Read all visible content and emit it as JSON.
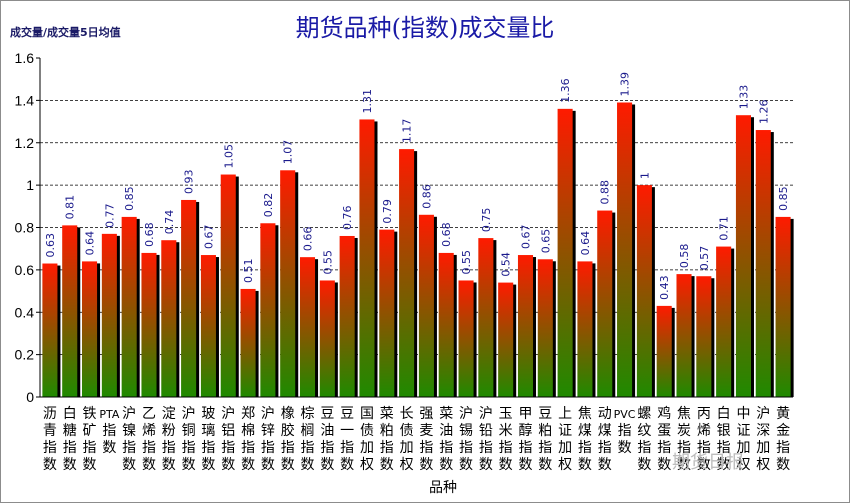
{
  "chart_data": {
    "type": "bar",
    "title": "期货品种(指数)成交量比",
    "ylabel": "成交量/成交量5日均值",
    "xlabel": "品种",
    "ylim": [
      0,
      1.6
    ],
    "yticks": [
      "0",
      "0.2",
      "0.4",
      "0.6",
      "0.8",
      "1",
      "1.2",
      "1.4",
      "1.6"
    ],
    "grid": true,
    "categories": [
      "沥青指数",
      "白糖指数",
      "铁矿指数",
      "PTA指数",
      "沪镍指数",
      "乙烯指数",
      "淀粉指数",
      "沪铜指数",
      "玻璃指数",
      "沪铝指数",
      "郑棉指数",
      "沪锌指数",
      "橡胶指数",
      "棕榈指数",
      "豆油指数",
      "豆一指数",
      "国债加权",
      "菜粕指数",
      "长债加权",
      "强麦指数",
      "菜油指数",
      "沪锡指数",
      "沪铅指数",
      "玉米指数",
      "甲醇指数",
      "豆粕指数",
      "上证加权",
      "焦煤指数",
      "动煤指数",
      "PVC指数",
      "螺纹指数",
      "鸡蛋指数",
      "焦炭指数",
      "丙烯指数",
      "白银指数",
      "中证加权",
      "沪深加权",
      "黄金指数"
    ],
    "values": [
      0.63,
      0.81,
      0.64,
      0.77,
      0.85,
      0.68,
      0.74,
      0.93,
      0.67,
      1.05,
      0.51,
      0.82,
      1.07,
      0.66,
      0.55,
      0.76,
      1.31,
      0.79,
      1.17,
      0.86,
      0.68,
      0.55,
      0.75,
      0.54,
      0.67,
      0.65,
      1.36,
      0.64,
      0.88,
      1.39,
      1,
      0.43,
      0.58,
      0.57,
      0.71,
      1.33,
      1.26,
      0.85
    ],
    "labels": [
      "0.63",
      "0.81",
      "0.64",
      "0.77",
      "0.85",
      "0.68",
      "0.74",
      "0.93",
      "0.67",
      "1.05",
      "0.51",
      "0.82",
      "1.07",
      "0.66",
      "0.55",
      "0.76",
      "1.31",
      "0.79",
      "1.17",
      "0.86",
      "0.68",
      "0.55",
      "0.75",
      "0.54",
      "0.67",
      "0.65",
      "1.36",
      "0.64",
      "0.88",
      "1.39",
      "1",
      "0.43",
      "0.58",
      "0.57",
      "0.71",
      "1.33",
      "1.26",
      "0.85"
    ],
    "colors": {
      "bar_top": "#ff1a00",
      "bar_bottom": "#1f8a00",
      "shadow": "#000000",
      "label": "#1a1a8c"
    }
  },
  "watermark": "期货日报"
}
